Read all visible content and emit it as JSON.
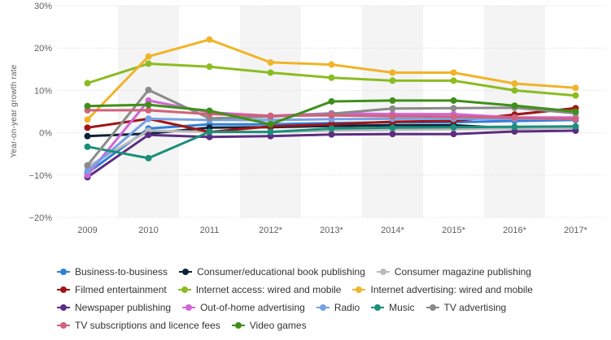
{
  "chart_data": {
    "type": "line",
    "title": "",
    "xlabel": "",
    "ylabel": "Year-on-year growth rate",
    "categories": [
      "2009",
      "2010",
      "2011",
      "2012*",
      "2013*",
      "2014*",
      "2015*",
      "2016*",
      "2017*"
    ],
    "ylim": [
      -20,
      30
    ],
    "yticks": [
      -20,
      -10,
      0,
      10,
      20,
      30
    ],
    "ytick_labels": [
      "−20%",
      "−10%",
      "0%",
      "10%",
      "20%",
      "30%"
    ],
    "grid": true,
    "legend_position": "bottom",
    "series": [
      {
        "name": "Business-to-business",
        "color": "#2f7ed8",
        "values": [
          -9.5,
          1.0,
          2.0,
          2.0,
          2.3,
          2.5,
          2.5,
          2.8,
          3.0
        ]
      },
      {
        "name": "Consumer/educational book publishing",
        "color": "#0d233a",
        "values": [
          -0.8,
          -0.2,
          1.2,
          1.3,
          1.6,
          1.8,
          1.8,
          1.0,
          1.2
        ]
      },
      {
        "name": "Consumer magazine publishing",
        "color": "#bbbbbb",
        "values": [
          -8.0,
          0.5,
          0.2,
          0.2,
          0.5,
          0.7,
          0.8,
          1.0,
          1.2
        ]
      },
      {
        "name": "Filmed entertainment",
        "color": "#a01515",
        "values": [
          1.2,
          3.3,
          0.2,
          1.5,
          2.0,
          2.6,
          2.8,
          4.3,
          5.8
        ]
      },
      {
        "name": "Internet access: wired and mobile",
        "color": "#8bbc21",
        "values": [
          11.7,
          16.3,
          15.6,
          14.2,
          13.0,
          12.3,
          12.3,
          10.0,
          8.8
        ]
      },
      {
        "name": "Internet advertising: wired and mobile",
        "color": "#f0b429",
        "values": [
          3.1,
          18.0,
          22.0,
          16.6,
          16.1,
          14.2,
          14.2,
          11.6,
          10.6
        ]
      },
      {
        "name": "Newspaper publishing",
        "color": "#5c2d82",
        "values": [
          -10.5,
          -0.5,
          -1.0,
          -0.8,
          -0.4,
          -0.3,
          -0.3,
          0.3,
          0.5
        ]
      },
      {
        "name": "Out-of-home advertising",
        "color": "#d066d8",
        "values": [
          -10.0,
          7.6,
          4.8,
          4.0,
          4.6,
          4.4,
          4.4,
          3.6,
          3.6
        ]
      },
      {
        "name": "Radio",
        "color": "#77a1e5",
        "values": [
          -9.0,
          3.3,
          3.0,
          3.0,
          3.2,
          3.3,
          3.3,
          3.3,
          3.2
        ]
      },
      {
        "name": "Music",
        "color": "#1a8f7a",
        "values": [
          -3.3,
          -6.0,
          0.2,
          0.2,
          1.0,
          1.2,
          1.3,
          1.4,
          1.5
        ]
      },
      {
        "name": "TV advertising",
        "color": "#8a8a8a",
        "values": [
          -7.7,
          10.1,
          3.4,
          3.8,
          4.5,
          5.7,
          5.8,
          5.9,
          4.6
        ]
      },
      {
        "name": "TV subscriptions and licence fees",
        "color": "#d0627a",
        "values": [
          5.3,
          5.3,
          4.4,
          4.0,
          4.1,
          3.9,
          3.8,
          3.5,
          3.2
        ]
      },
      {
        "name": "Video games",
        "color": "#3f8f1a",
        "values": [
          6.3,
          6.6,
          5.2,
          2.0,
          7.4,
          7.6,
          7.6,
          6.4,
          5.0
        ]
      }
    ]
  },
  "legend_rows": [
    [
      0,
      1,
      2
    ],
    [
      3,
      4,
      5
    ],
    [
      6,
      7,
      8,
      9,
      10
    ],
    [
      11,
      12
    ]
  ]
}
